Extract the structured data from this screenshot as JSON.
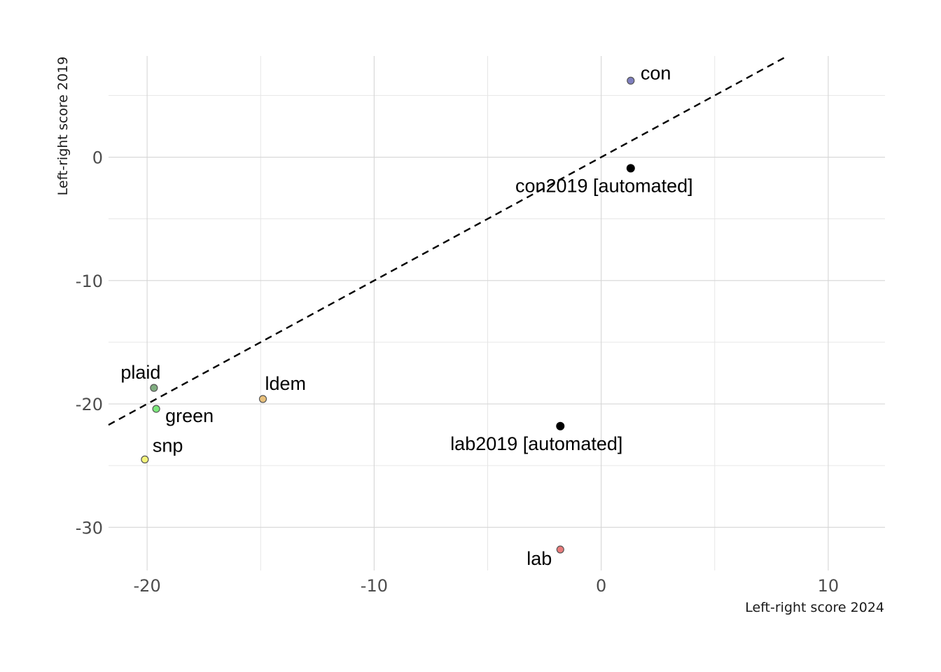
{
  "chart_data": {
    "type": "scatter",
    "title": "",
    "xlabel": "Left-right score 2024",
    "ylabel": "Left-right score 2019",
    "xlim": [
      -21.7,
      12.5
    ],
    "ylim": [
      -33.5,
      8.2
    ],
    "x_ticks": [
      -20,
      -10,
      0,
      10
    ],
    "x_tick_labels": [
      "-20",
      "-10",
      "0",
      "10"
    ],
    "y_ticks": [
      -30,
      -20,
      -10,
      0
    ],
    "y_tick_labels": [
      "-30",
      "-20",
      "-10",
      "0"
    ],
    "grid": true,
    "reference_line": {
      "type": "identity",
      "style": "dashed",
      "color": "#000000"
    },
    "points": [
      {
        "label": "con",
        "x": 1.3,
        "y": 6.2,
        "color": "#7f7fbf"
      },
      {
        "label": "lab",
        "x": -1.8,
        "y": -31.8,
        "color": "#e87b7b"
      },
      {
        "label": "ldem",
        "x": -14.9,
        "y": -19.6,
        "color": "#e8c07b"
      },
      {
        "label": "green",
        "x": -19.6,
        "y": -20.4,
        "color": "#7be87b"
      },
      {
        "label": "plaid",
        "x": -19.7,
        "y": -18.7,
        "color": "#80ad80"
      },
      {
        "label": "snp",
        "x": -20.1,
        "y": -24.5,
        "color": "#f4f47b"
      },
      {
        "label": "con2019 [automated]",
        "x": 1.3,
        "y": -0.9,
        "color": "#000000"
      },
      {
        "label": "lab2019 [automated]",
        "x": -1.8,
        "y": -21.8,
        "color": "#000000"
      }
    ]
  }
}
